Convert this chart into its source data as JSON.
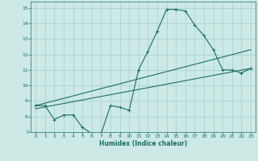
{
  "xlabel": "Humidex (Indice chaleur)",
  "bg_color": "#cce9e5",
  "grid_color": "#aad4cf",
  "line_color": "#1a6e64",
  "xlim": [
    -0.5,
    23.5
  ],
  "ylim": [
    7,
    15.4
  ],
  "xticks": [
    0,
    1,
    2,
    3,
    4,
    5,
    6,
    7,
    8,
    9,
    10,
    11,
    12,
    13,
    14,
    15,
    16,
    17,
    18,
    19,
    20,
    21,
    22,
    23
  ],
  "yticks": [
    7,
    8,
    9,
    10,
    11,
    12,
    13,
    14,
    15
  ],
  "curve1_x": [
    0,
    1,
    2,
    3,
    4,
    5,
    6,
    7,
    8,
    9,
    10,
    11,
    12,
    13,
    14,
    15,
    16,
    17,
    18,
    19,
    20,
    21,
    22,
    23
  ],
  "curve1_y": [
    8.7,
    8.7,
    7.8,
    8.1,
    8.1,
    7.3,
    6.9,
    6.9,
    8.7,
    8.6,
    8.4,
    11.0,
    12.2,
    13.5,
    14.9,
    14.9,
    14.8,
    13.9,
    13.2,
    12.3,
    11.0,
    11.0,
    10.8,
    11.1
  ],
  "line1_x": [
    0,
    23
  ],
  "line1_y": [
    8.7,
    12.3
  ],
  "line2_x": [
    0,
    23
  ],
  "line2_y": [
    8.5,
    11.1
  ]
}
